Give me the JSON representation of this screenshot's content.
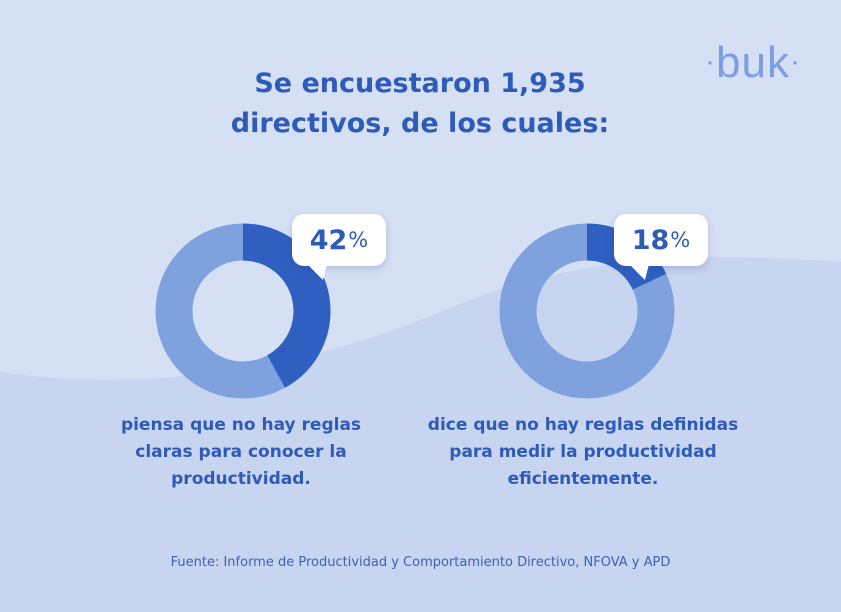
{
  "logo": "buk",
  "title_line1": "Se encuestaron 1,935",
  "title_line2": "directivos, de los cuales:",
  "colors": {
    "background": "#d6e0f5",
    "wave": "#c7d5f0",
    "accent": "#2e5ab8",
    "ring_rest": "#7fa2de",
    "ring_highlight": "#2f5fc0"
  },
  "chart_data": [
    {
      "type": "pie",
      "value_percent": 42,
      "label_number": "42",
      "label_unit": "%",
      "caption": [
        "piensa que no hay reglas",
        "claras para conocer la",
        "productividad."
      ]
    },
    {
      "type": "pie",
      "value_percent": 18,
      "label_number": "18",
      "label_unit": "%",
      "caption": [
        "dice que no hay reglas definidas",
        "para medir la productividad",
        "eficientemente."
      ]
    }
  ],
  "source": "Fuente: Informe de Productividad y Comportamiento Directivo, NFOVA y APD"
}
